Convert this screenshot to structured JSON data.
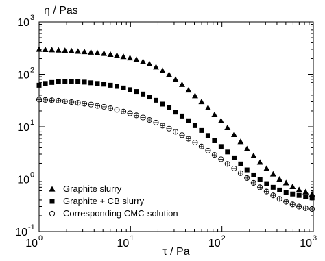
{
  "chart_data": {
    "type": "scatter",
    "xscale": "log",
    "yscale": "log",
    "xlim": [
      1,
      1000
    ],
    "ylim": [
      0.1,
      1000
    ],
    "xlabel": "τ / Pa",
    "ylabel": "η / Pas",
    "grid": false,
    "legend_position": "bottom-left",
    "x_ticks": [
      {
        "base": "10",
        "exp": "0",
        "value": 1
      },
      {
        "base": "10",
        "exp": "1",
        "value": 10
      },
      {
        "base": "10",
        "exp": "2",
        "value": 100
      },
      {
        "base": "10",
        "exp": "3",
        "value": 1000
      }
    ],
    "y_ticks": [
      {
        "base": "10",
        "exp": "-1",
        "value": 0.1
      },
      {
        "base": "10",
        "exp": "0",
        "value": 1
      },
      {
        "base": "10",
        "exp": "1",
        "value": 10
      },
      {
        "base": "10",
        "exp": "2",
        "value": 100
      },
      {
        "base": "10",
        "exp": "3",
        "value": 1000
      }
    ],
    "series": [
      {
        "name": "Graphite slurry",
        "marker": "triangle",
        "color": "#000000",
        "x": [
          1.0,
          1.17,
          1.38,
          1.63,
          1.92,
          2.26,
          2.66,
          3.13,
          3.69,
          4.34,
          5.12,
          6.03,
          7.1,
          8.37,
          9.86,
          11.6,
          13.7,
          16.1,
          19.0,
          22.4,
          26.4,
          31.1,
          36.6,
          43.1,
          50.8,
          59.8,
          70.5,
          83.0,
          97.8,
          115,
          136,
          160,
          188,
          222,
          261,
          308,
          363,
          427,
          503,
          593,
          698,
          823,
          969
        ],
        "y": [
          300,
          296,
          293,
          290,
          286,
          280,
          275,
          270,
          264,
          257,
          250,
          240,
          230,
          218,
          206,
          192,
          175,
          158,
          138,
          118,
          99,
          80,
          64,
          50,
          39,
          30,
          23,
          17,
          13,
          9.6,
          7.1,
          5.2,
          3.8,
          2.8,
          2.1,
          1.6,
          1.25,
          1.0,
          0.85,
          0.72,
          0.63,
          0.57,
          0.52
        ]
      },
      {
        "name": "Graphite + CB slurry",
        "marker": "square",
        "color": "#000000",
        "x": [
          1.0,
          1.17,
          1.38,
          1.63,
          1.92,
          2.26,
          2.66,
          3.13,
          3.69,
          4.34,
          5.12,
          6.03,
          7.1,
          8.37,
          9.86,
          11.6,
          13.7,
          16.1,
          19.0,
          22.4,
          26.4,
          31.1,
          36.6,
          43.1,
          50.8,
          59.8,
          70.5,
          83.0,
          97.8,
          115,
          136,
          160,
          188,
          222,
          261,
          308,
          363,
          427,
          503,
          593,
          698,
          823,
          969
        ],
        "y": [
          62,
          67,
          70,
          72,
          73,
          73,
          72,
          71,
          69,
          67,
          65,
          62,
          59,
          55,
          51,
          47,
          42,
          37,
          32,
          27,
          23,
          19,
          16,
          13,
          10.5,
          8.5,
          6.8,
          5.4,
          4.2,
          3.3,
          2.55,
          1.95,
          1.5,
          1.2,
          0.98,
          0.82,
          0.7,
          0.62,
          0.56,
          0.52,
          0.49,
          0.46,
          0.44
        ]
      },
      {
        "name": "Corresponding CMC-solution",
        "marker": "circle-cross",
        "color": "#000000",
        "x": [
          1.0,
          1.17,
          1.38,
          1.63,
          1.92,
          2.26,
          2.66,
          3.13,
          3.69,
          4.34,
          5.12,
          6.03,
          7.1,
          8.37,
          9.86,
          11.6,
          13.7,
          16.1,
          19.0,
          22.4,
          26.4,
          31.1,
          36.6,
          43.1,
          50.8,
          59.8,
          70.5,
          83.0,
          97.8,
          115,
          136,
          160,
          188,
          222,
          261,
          308,
          363,
          427,
          503,
          593,
          698,
          823,
          969
        ],
        "y": [
          33,
          32.5,
          32,
          31.5,
          30.5,
          29.5,
          28.5,
          27.5,
          26.5,
          25,
          24,
          22.5,
          21,
          19.5,
          18,
          16.5,
          15,
          13.5,
          12,
          10.5,
          9.2,
          8,
          6.9,
          5.9,
          5,
          4.2,
          3.5,
          2.9,
          2.4,
          1.95,
          1.6,
          1.3,
          1.05,
          0.85,
          0.7,
          0.58,
          0.49,
          0.42,
          0.37,
          0.33,
          0.3,
          0.28,
          0.27
        ]
      }
    ]
  }
}
